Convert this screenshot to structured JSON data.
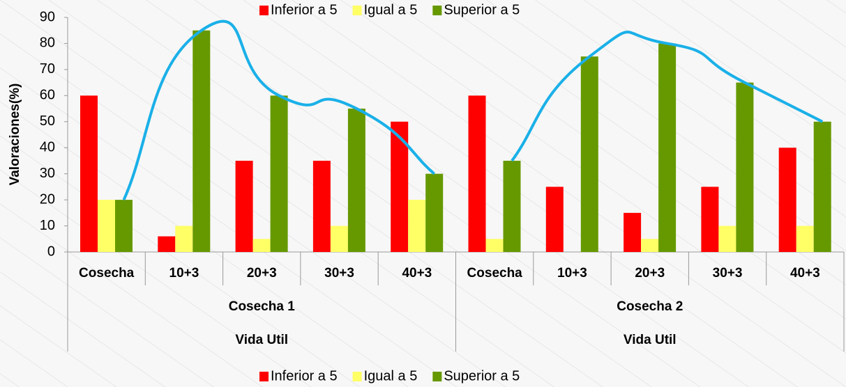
{
  "chart_data": {
    "type": "bar",
    "y_label": "Valoraciones(%)",
    "categories": [
      "Cosecha",
      "10+3",
      "20+3",
      "30+3",
      "40+3",
      "Cosecha",
      "10+3",
      "20+3",
      "30+3",
      "40+3"
    ],
    "groups": [
      {
        "label": "Cosecha 1",
        "sublabel": "Vida Util"
      },
      {
        "label": "Cosecha 2",
        "sublabel": "Vida Util"
      }
    ],
    "series": [
      {
        "name": "Inferior a 5",
        "color": "#ff0000",
        "values": [
          60,
          6,
          35,
          35,
          50,
          60,
          25,
          15,
          25,
          40
        ]
      },
      {
        "name": "Igual a 5",
        "color": "#ffff66",
        "values": [
          20,
          10,
          5,
          10,
          20,
          5,
          0,
          5,
          10,
          10
        ]
      },
      {
        "name": "Superior a 5",
        "color": "#669900",
        "values": [
          20,
          85,
          60,
          55,
          30,
          35,
          75,
          80,
          65,
          50
        ]
      }
    ],
    "trend_series": 2,
    "trend_color": "#1ab0e8",
    "ylim": [
      0,
      90
    ],
    "yticks": [
      0,
      10,
      20,
      30,
      40,
      50,
      60,
      70,
      80,
      90
    ],
    "grid": false,
    "legend": [
      "top",
      "bottom"
    ]
  }
}
